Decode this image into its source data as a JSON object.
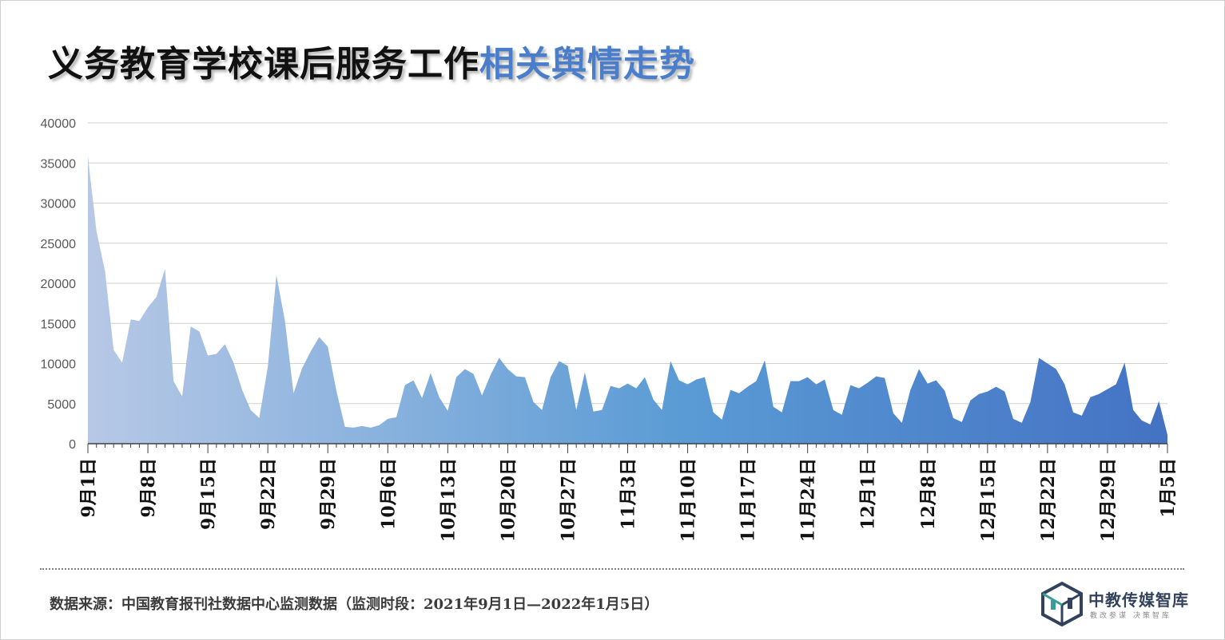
{
  "header": {
    "title_part1": "义务教育学校课后服务工作",
    "title_part2": "相关舆情走势"
  },
  "footer": {
    "source": "数据来源：中国教育报刊社数据中心监测数据（监测时段：2021年9月1日—2022年1月5日）"
  },
  "logo": {
    "name": "中教传媒智库",
    "tagline": "教改参谋  决策智库",
    "icon": "cube-logo-icon"
  },
  "colors": {
    "area_start": "#b7c8e6",
    "area_mid": "#5a9bd5",
    "area_end": "#4472c4",
    "title_accent": "#4a7ecb",
    "grid": "#d0d0d0"
  },
  "chart_data": {
    "type": "area",
    "title": "义务教育学校课后服务工作相关舆情走势",
    "xlabel": "",
    "ylabel": "",
    "ylim": [
      0,
      40000
    ],
    "yticks": [
      0,
      5000,
      10000,
      15000,
      20000,
      25000,
      30000,
      35000,
      40000
    ],
    "grid": true,
    "x_start": "2021-09-01",
    "x_end": "2022-01-05",
    "x_tick_labels": [
      "9月1日",
      "9月8日",
      "9月15日",
      "9月22日",
      "9月29日",
      "10月6日",
      "10月13日",
      "10月20日",
      "10月27日",
      "11月3日",
      "11月10日",
      "11月17日",
      "11月24日",
      "12月1日",
      "12月8日",
      "12月15日",
      "12月22日",
      "12月29日",
      "1月5日"
    ],
    "values": [
      35800,
      26500,
      21500,
      11700,
      10100,
      15500,
      15300,
      17000,
      18300,
      21800,
      7800,
      5900,
      14600,
      14000,
      11000,
      11200,
      12400,
      10100,
      6700,
      4200,
      3200,
      9600,
      21000,
      15300,
      6300,
      9400,
      11500,
      13300,
      12100,
      6600,
      2100,
      2000,
      2200,
      2000,
      2300,
      3100,
      3300,
      7300,
      7900,
      5700,
      8800,
      5800,
      4100,
      8300,
      9300,
      8700,
      6000,
      8600,
      10700,
      9300,
      8400,
      8300,
      5200,
      4200,
      8300,
      10300,
      9700,
      4200,
      8900,
      4000,
      4200,
      7200,
      6900,
      7500,
      6900,
      8300,
      5500,
      4200,
      10300,
      7900,
      7400,
      8000,
      8300,
      3900,
      3000,
      6700,
      6300,
      7100,
      7800,
      10400,
      4600,
      3900,
      7800,
      7800,
      8300,
      7400,
      8000,
      4200,
      3600,
      7300,
      6900,
      7600,
      8400,
      8200,
      3800,
      2600,
      6700,
      9300,
      7500,
      7900,
      6600,
      3200,
      2700,
      5400,
      6200,
      6500,
      7100,
      6500,
      3100,
      2600,
      5200,
      10700,
      10000,
      9300,
      7400,
      3900,
      3500,
      5800,
      6200,
      6800,
      7400,
      10100,
      4200,
      2900,
      2400,
      5300,
      1100
    ]
  }
}
